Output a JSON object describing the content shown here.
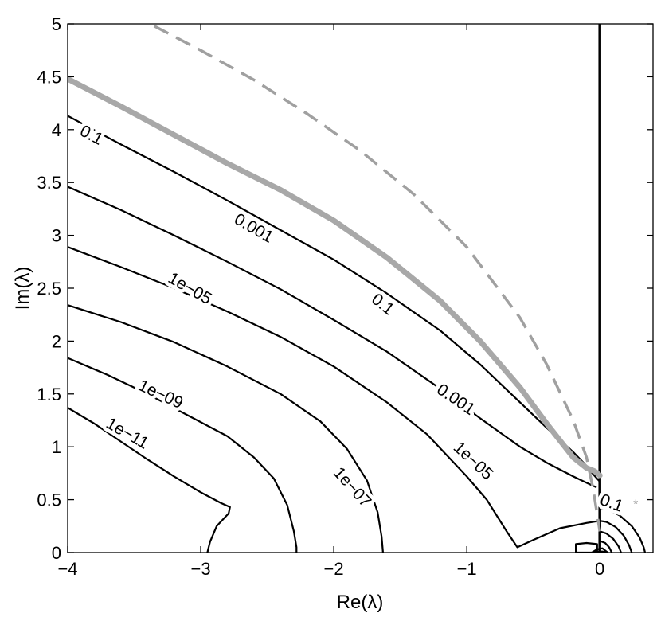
{
  "chart_data": {
    "type": "line",
    "xlabel": "Re(λ)",
    "ylabel": "Im(λ)",
    "xlim": [
      -4,
      0.4
    ],
    "ylim": [
      0,
      5
    ],
    "xticks": [
      -4,
      -3,
      -2,
      -1,
      0
    ],
    "xtick_labels": [
      "−4",
      "−3",
      "−2",
      "−1",
      "0"
    ],
    "yticks": [
      0,
      0.5,
      1,
      1.5,
      2,
      2.5,
      3,
      3.5,
      4,
      4.5,
      5
    ],
    "ytick_labels": [
      "0",
      "0.5",
      "1",
      "1.5",
      "2",
      "2.5",
      "3",
      "3.5",
      "4",
      "4.5",
      "5"
    ],
    "colors": {
      "contour": "#000000",
      "gray_curve": "#a8a8a8",
      "dashed_curve": "#a0a0a0",
      "marker": "#a8a8a8"
    },
    "series": [
      {
        "style": "contour",
        "level": "0.1",
        "x": [
          -4,
          -3.6,
          -3.2,
          -2.8,
          -2.4,
          -2.0,
          -1.6,
          -1.2,
          -0.9,
          -0.6,
          -0.4,
          -0.2,
          -0.1,
          -0.05,
          0
        ],
        "y": [
          4.13,
          3.86,
          3.6,
          3.33,
          3.05,
          2.77,
          2.45,
          2.1,
          1.78,
          1.42,
          1.18,
          0.95,
          0.82,
          0.74,
          0.67
        ]
      },
      {
        "style": "contour",
        "level": "0.001",
        "x": [
          -4,
          -3.6,
          -3.2,
          -2.8,
          -2.4,
          -2.0,
          -1.6,
          -1.2,
          -0.9,
          -0.6,
          -0.4,
          -0.2,
          -0.1,
          -0.03
        ],
        "y": [
          3.46,
          3.24,
          3.0,
          2.75,
          2.49,
          2.2,
          1.9,
          1.55,
          1.27,
          1.0,
          0.85,
          0.72,
          0.66,
          0.62
        ]
      },
      {
        "style": "contour",
        "level": "1e−05",
        "x": [
          -4,
          -3.6,
          -3.2,
          -2.8,
          -2.4,
          -2.0,
          -1.6,
          -1.3,
          -1.0,
          -0.85,
          -0.7,
          -0.62,
          -0.5,
          -0.3,
          -0.1,
          0
        ],
        "y": [
          2.89,
          2.7,
          2.5,
          2.28,
          2.04,
          1.76,
          1.42,
          1.12,
          0.72,
          0.5,
          0.2,
          0.05,
          0.12,
          0.23,
          0.28,
          0.3
        ]
      },
      {
        "style": "contour",
        "level": "1e−07",
        "x": [
          -4,
          -3.6,
          -3.2,
          -2.8,
          -2.4,
          -2.1,
          -1.9,
          -1.75,
          -1.67,
          -1.64,
          -1.63
        ],
        "y": [
          2.34,
          2.18,
          1.99,
          1.76,
          1.5,
          1.24,
          0.98,
          0.68,
          0.38,
          0.15,
          0
        ]
      },
      {
        "style": "contour",
        "level": "1e−09",
        "x": [
          -4,
          -3.7,
          -3.4,
          -3.1,
          -2.8,
          -2.6,
          -2.45,
          -2.35,
          -2.3,
          -2.28,
          -2.28
        ],
        "y": [
          1.84,
          1.68,
          1.5,
          1.3,
          1.1,
          0.9,
          0.7,
          0.45,
          0.2,
          0.05,
          0
        ]
      },
      {
        "style": "contour",
        "level": "1e−11",
        "x": [
          -4,
          -3.8,
          -3.6,
          -3.4,
          -3.2,
          -3.0,
          -2.85,
          -2.78,
          -2.79,
          -2.88,
          -2.93,
          -2.95
        ],
        "y": [
          1.37,
          1.22,
          1.05,
          0.88,
          0.72,
          0.57,
          0.47,
          0.43,
          0.37,
          0.25,
          0.1,
          0
        ]
      },
      {
        "style": "contour",
        "level": "0.1",
        "x": [
          0,
          0.06,
          0.15,
          0.24,
          0.3,
          0.33,
          0.34
        ],
        "y": [
          0.42,
          0.41,
          0.35,
          0.25,
          0.14,
          0.05,
          0
        ]
      },
      {
        "style": "contour",
        "level": "",
        "x": [
          0,
          0.05,
          0.12,
          0.18,
          0.22,
          0.24
        ],
        "y": [
          0.3,
          0.29,
          0.24,
          0.16,
          0.07,
          0
        ]
      },
      {
        "style": "contour",
        "level": "",
        "x": [
          0,
          0.05,
          0.1,
          0.14,
          0.16
        ],
        "y": [
          0.2,
          0.18,
          0.13,
          0.06,
          0
        ]
      },
      {
        "style": "contour",
        "level": "",
        "x": [
          0,
          0.04,
          0.07,
          0.09
        ],
        "y": [
          0.11,
          0.09,
          0.05,
          0
        ]
      },
      {
        "style": "contour",
        "level": "",
        "x": [
          -0.18,
          -0.18,
          -0.1,
          -0.02,
          -0.02,
          -0.18
        ],
        "y": [
          0,
          0.08,
          0.09,
          0.08,
          0,
          0
        ]
      },
      {
        "style": "contour",
        "level": "",
        "x": [
          -0.06,
          -0.02,
          0.02,
          0.06,
          0.02,
          -0.02,
          -0.06
        ],
        "y": [
          0,
          0.03,
          0.04,
          0,
          0.01,
          0.01,
          0
        ]
      },
      {
        "style": "vertical-line",
        "x": [
          0,
          0
        ],
        "y": [
          0,
          5
        ]
      },
      {
        "style": "gray-thick",
        "x": [
          -4,
          -3.6,
          -3.2,
          -2.8,
          -2.4,
          -2.0,
          -1.6,
          -1.2,
          -0.9,
          -0.6,
          -0.4,
          -0.2,
          -0.1,
          -0.04,
          0
        ],
        "y": [
          4.48,
          4.22,
          3.95,
          3.68,
          3.43,
          3.14,
          2.79,
          2.38,
          2.0,
          1.56,
          1.22,
          0.9,
          0.8,
          0.77,
          0.73
        ]
      },
      {
        "style": "gray-dashed",
        "x": [
          -3.35,
          -3.0,
          -2.6,
          -2.2,
          -1.8,
          -1.4,
          -1.0,
          -0.6,
          -0.4,
          -0.2,
          -0.1,
          -0.05,
          0
        ],
        "y": [
          4.98,
          4.75,
          4.47,
          4.15,
          3.8,
          3.39,
          2.89,
          2.22,
          1.78,
          1.25,
          0.9,
          0.6,
          0.2
        ]
      },
      {
        "style": "marker",
        "x": [
          0.27
        ],
        "y": [
          0.47
        ]
      }
    ],
    "contour_labels": [
      {
        "text": "0.1",
        "x": -3.82,
        "y": 3.95,
        "angle": 28
      },
      {
        "text": "0.001",
        "x": -2.6,
        "y": 3.07,
        "angle": 30
      },
      {
        "text": "1e−05",
        "x": -3.08,
        "y": 2.5,
        "angle": 30
      },
      {
        "text": "0.1",
        "x": -1.63,
        "y": 2.35,
        "angle": 38
      },
      {
        "text": "0.001",
        "x": -1.08,
        "y": 1.45,
        "angle": 34
      },
      {
        "text": "1e−09",
        "x": -3.3,
        "y": 1.5,
        "angle": 25
      },
      {
        "text": "1e−05",
        "x": -0.95,
        "y": 0.87,
        "angle": 43
      },
      {
        "text": "1e−11",
        "x": -3.55,
        "y": 1.13,
        "angle": 30
      },
      {
        "text": "1e−07",
        "x": -1.86,
        "y": 0.62,
        "angle": 48
      },
      {
        "text": "0.1",
        "x": 0.09,
        "y": 0.47,
        "angle": 20
      }
    ]
  }
}
